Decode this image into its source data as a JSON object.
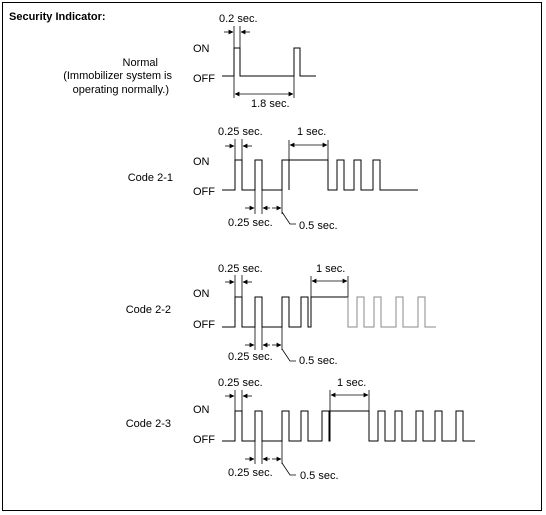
{
  "title": "Security Indicator:",
  "levels": {
    "on": "ON",
    "off": "OFF"
  },
  "normal": {
    "label_line1": "Normal",
    "label_line2": "(Immobilizer system is",
    "label_line3": "operating normally.)",
    "on_time": "0.2 sec.",
    "period": "1.8 sec."
  },
  "codes": [
    {
      "label": "Code  2-1",
      "short_pulse": "0.25 sec.",
      "long_pulse": "1 sec.",
      "short_gap": "0.25 sec.",
      "long_gap": "0.5 sec."
    },
    {
      "label": "Code  2-2",
      "short_pulse": "0.25 sec.",
      "long_pulse": "1 sec.",
      "short_gap": "0.25 sec.",
      "long_gap": "0.5 sec."
    },
    {
      "label": "Code  2-3",
      "short_pulse": "0.25 sec.",
      "long_pulse": "1 sec.",
      "short_gap": "0.25 sec.",
      "long_gap": "0.5 sec."
    }
  ]
}
